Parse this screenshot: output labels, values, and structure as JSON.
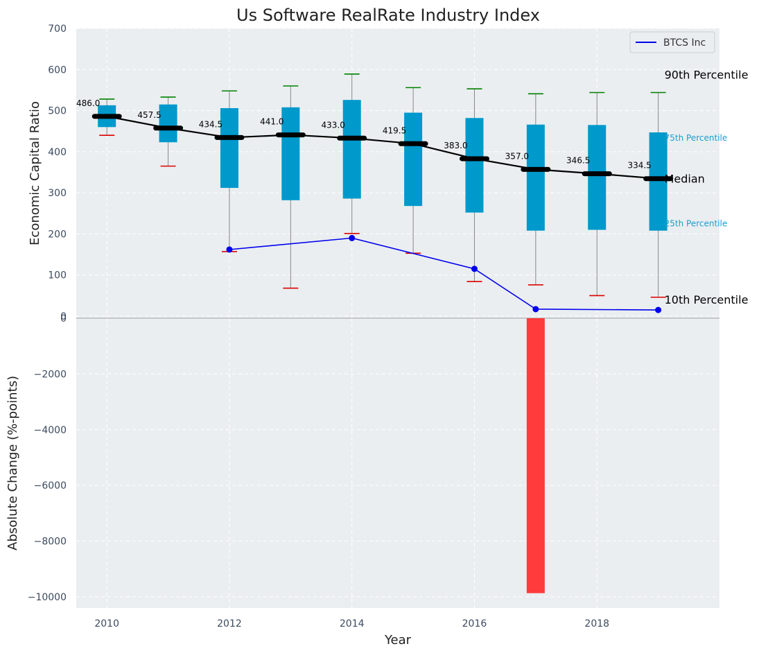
{
  "chart_data": [
    {
      "type": "box",
      "title": "Us Software RealRate Industry Index",
      "ylabel": "Economic Capital Ratio",
      "ylim": [
        -5,
        700
      ],
      "yticks": [
        0,
        100,
        200,
        300,
        400,
        500,
        600,
        700
      ],
      "grid": true,
      "legend_placement": "top-right",
      "categories": [
        2010,
        2011,
        2012,
        2013,
        2014,
        2015,
        2016,
        2017,
        2018,
        2019
      ],
      "p10": [
        440,
        365,
        157,
        68,
        201,
        153,
        84,
        76,
        50,
        46
      ],
      "p25": [
        460,
        423,
        312,
        282,
        286,
        268,
        252,
        208,
        210,
        208
      ],
      "median": [
        486.0,
        457.5,
        434.5,
        441.0,
        433.0,
        419.5,
        383.0,
        357.0,
        346.5,
        334.5
      ],
      "median_labels": [
        "486.0",
        "457.5",
        "434.5",
        "441.0",
        "433.0",
        "419.5",
        "383.0",
        "357.0",
        "346.5",
        "334.5"
      ],
      "p75": [
        513,
        515,
        506,
        508,
        526,
        495,
        482,
        466,
        465,
        447
      ],
      "p90": [
        528,
        533,
        548,
        560,
        589,
        556,
        553,
        541,
        544,
        544
      ],
      "series": [
        {
          "name": "BTCS Inc",
          "x": [
            2012,
            2014,
            2016,
            2017,
            2019
          ],
          "values": [
            162,
            190,
            115,
            17,
            15
          ],
          "color": "#0000ee"
        }
      ],
      "annotations": [
        "90th Percentile",
        "75th Percentile",
        "Median",
        "25th Percentile",
        "10th Percentile"
      ],
      "colors": {
        "box": "#0099cc",
        "median_line": "#000000",
        "p90_cap": "#008000",
        "p10_cap": "#dd0000",
        "whisker": "#888888",
        "background": "#eaeef0"
      }
    },
    {
      "type": "bar",
      "xlabel": "Year",
      "ylabel": "Absolute Change (%-points)",
      "ylim": [
        -10400,
        0
      ],
      "yticks": [
        0,
        -2000,
        -4000,
        -6000,
        -8000,
        -10000
      ],
      "xticks": [
        2010,
        2012,
        2014,
        2016,
        2018
      ],
      "xlim": [
        2009.5,
        2020
      ],
      "bars": [
        {
          "x": 2017,
          "value": -9870
        }
      ],
      "color": "#ff3b3b"
    }
  ]
}
